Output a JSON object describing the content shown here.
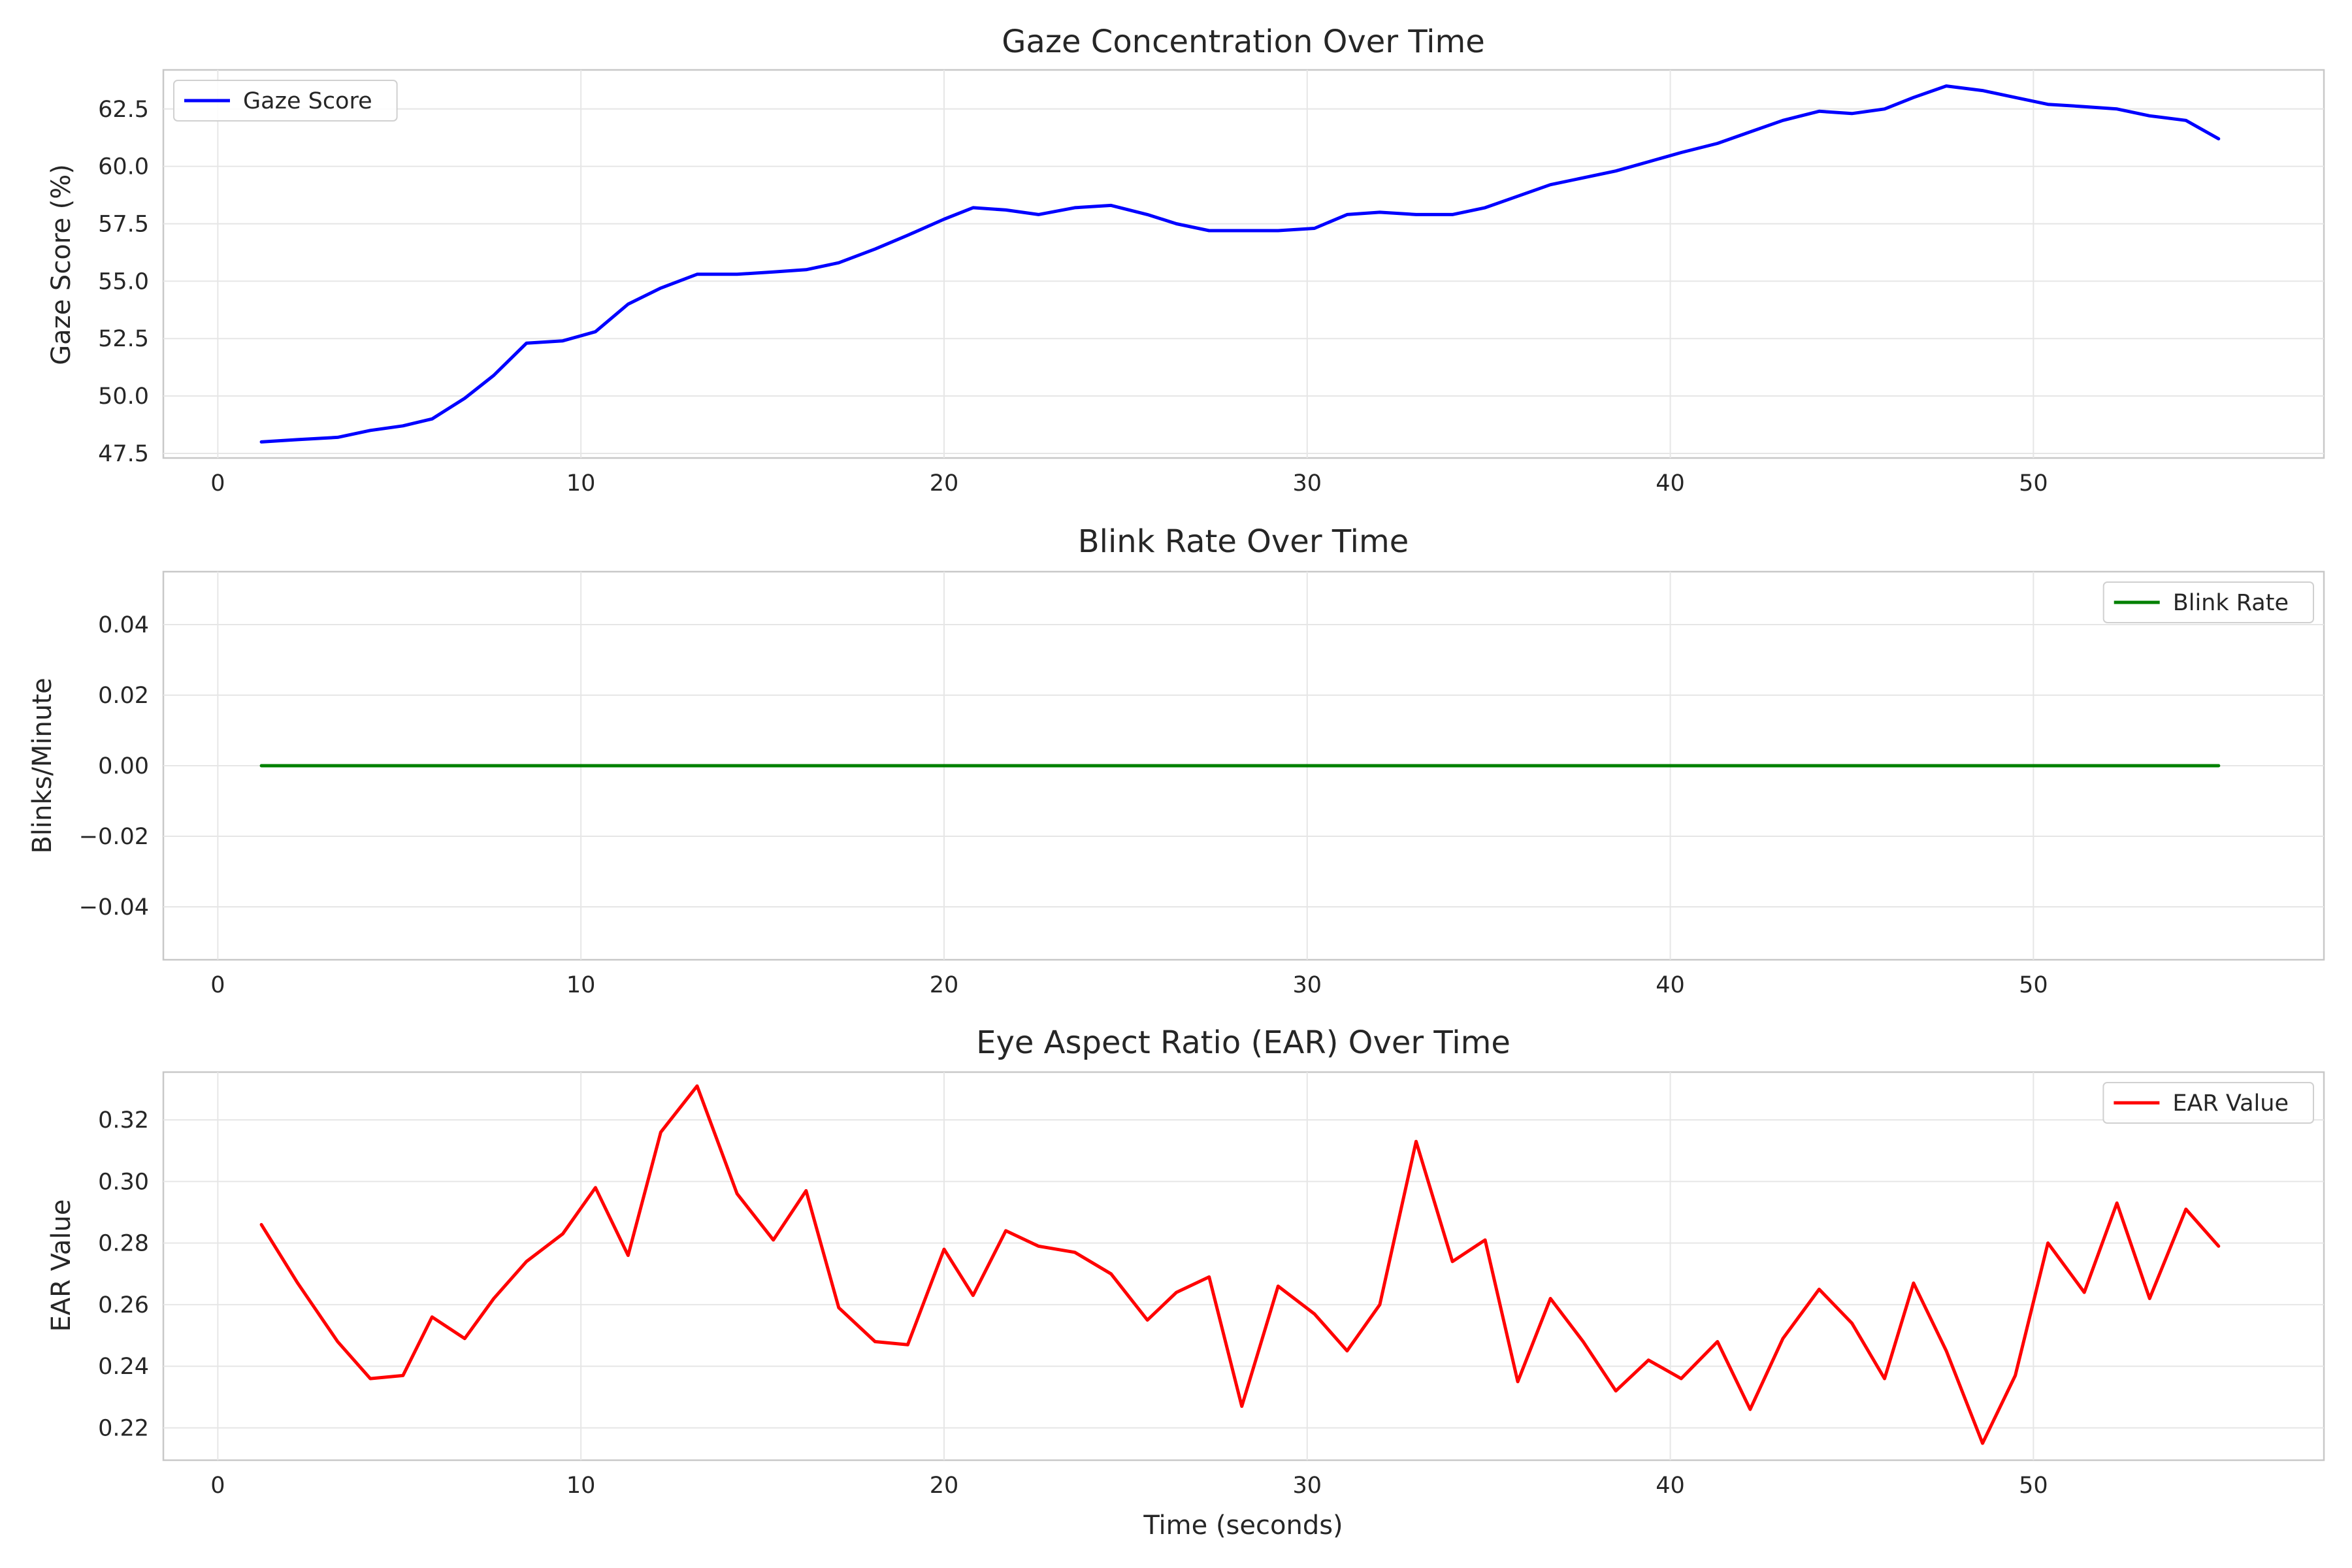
{
  "chart_data": [
    {
      "type": "line",
      "title": "Gaze Concentration Over Time",
      "xlabel": "",
      "ylabel": "Gaze Score (%)",
      "xlim": [
        -1.5,
        58
      ],
      "ylim": [
        47.3,
        64.2
      ],
      "xticks": [
        0,
        10,
        20,
        30,
        40,
        50
      ],
      "yticks": [
        47.5,
        50.0,
        52.5,
        55.0,
        57.5,
        60.0,
        62.5
      ],
      "ytick_decimals": 1,
      "grid": true,
      "legend": "top-left",
      "series": [
        {
          "name": "Gaze Score",
          "color": "#0000ff",
          "x": [
            1.2,
            2.2,
            3.3,
            4.2,
            5.1,
            5.9,
            6.8,
            7.6,
            8.5,
            9.5,
            10.4,
            11.3,
            12.2,
            13.2,
            14.3,
            15.3,
            16.2,
            17.1,
            18.1,
            19.0,
            20.0,
            20.8,
            21.7,
            22.6,
            23.6,
            24.6,
            25.6,
            26.4,
            27.3,
            28.2,
            29.2,
            30.2,
            31.1,
            32.0,
            33.0,
            34.0,
            34.9,
            35.8,
            36.7,
            37.6,
            38.5,
            39.4,
            40.3,
            41.3,
            42.2,
            43.1,
            44.1,
            45.0,
            45.9,
            46.7,
            47.6,
            48.6,
            49.5,
            50.4,
            51.4,
            52.3,
            53.2,
            54.2,
            55.1
          ],
          "y": [
            48.0,
            48.1,
            48.2,
            48.5,
            48.7,
            49.0,
            49.9,
            50.9,
            52.3,
            52.4,
            52.8,
            54.0,
            54.7,
            55.3,
            55.3,
            55.4,
            55.5,
            55.8,
            56.4,
            57.0,
            57.7,
            58.2,
            58.1,
            57.9,
            58.2,
            58.3,
            57.9,
            57.5,
            57.2,
            57.2,
            57.2,
            57.3,
            57.9,
            58.0,
            57.9,
            57.9,
            58.2,
            58.7,
            59.2,
            59.5,
            59.8,
            60.2,
            60.6,
            61.0,
            61.5,
            62.0,
            62.4,
            62.3,
            62.5,
            63.0,
            63.5,
            63.3,
            63.0,
            62.7,
            62.6,
            62.5,
            62.2,
            62.0,
            61.2
          ]
        }
      ]
    },
    {
      "type": "line",
      "title": "Blink Rate Over Time",
      "xlabel": "",
      "ylabel": "Blinks/Minute",
      "xlim": [
        -1.5,
        58
      ],
      "ylim": [
        -0.055,
        0.055
      ],
      "xticks": [
        0,
        10,
        20,
        30,
        40,
        50
      ],
      "yticks": [
        -0.04,
        -0.02,
        0.0,
        0.02,
        0.04
      ],
      "ytick_decimals": 2,
      "grid": true,
      "legend": "top-right",
      "series": [
        {
          "name": "Blink Rate",
          "color": "#008000",
          "x": [
            1.2,
            55.1
          ],
          "y": [
            0.0,
            0.0
          ]
        }
      ]
    },
    {
      "type": "line",
      "title": "Eye Aspect Ratio (EAR) Over Time",
      "xlabel": "Time (seconds)",
      "ylabel": "EAR Value",
      "xlim": [
        -1.5,
        58
      ],
      "ylim": [
        0.2095,
        0.3355
      ],
      "xticks": [
        0,
        10,
        20,
        30,
        40,
        50
      ],
      "yticks": [
        0.22,
        0.24,
        0.26,
        0.28,
        0.3,
        0.32
      ],
      "ytick_decimals": 2,
      "grid": true,
      "legend": "top-right",
      "series": [
        {
          "name": "EAR Value",
          "color": "#ff0000",
          "x": [
            1.2,
            2.2,
            3.3,
            4.2,
            5.1,
            5.9,
            6.8,
            7.6,
            8.5,
            9.5,
            10.4,
            11.3,
            12.2,
            13.2,
            14.3,
            15.3,
            16.2,
            17.1,
            18.1,
            19.0,
            20.0,
            20.8,
            21.7,
            22.6,
            23.6,
            24.6,
            25.6,
            26.4,
            27.3,
            28.2,
            29.2,
            30.2,
            31.1,
            32.0,
            33.0,
            34.0,
            34.9,
            35.8,
            36.7,
            37.6,
            38.5,
            39.4,
            40.3,
            41.3,
            42.2,
            43.1,
            44.1,
            45.0,
            45.9,
            46.7,
            47.6,
            48.6,
            49.5,
            50.4,
            51.4,
            52.3,
            53.2,
            54.2,
            55.1
          ],
          "y": [
            0.286,
            0.267,
            0.248,
            0.236,
            0.237,
            0.256,
            0.249,
            0.262,
            0.274,
            0.283,
            0.298,
            0.276,
            0.316,
            0.331,
            0.296,
            0.281,
            0.297,
            0.259,
            0.248,
            0.247,
            0.278,
            0.263,
            0.284,
            0.279,
            0.277,
            0.27,
            0.255,
            0.264,
            0.269,
            0.227,
            0.266,
            0.257,
            0.245,
            0.26,
            0.313,
            0.274,
            0.281,
            0.235,
            0.262,
            0.248,
            0.232,
            0.242,
            0.236,
            0.248,
            0.226,
            0.249,
            0.265,
            0.254,
            0.236,
            0.267,
            0.245,
            0.215,
            0.237,
            0.28,
            0.264,
            0.293,
            0.262,
            0.291,
            0.279
          ]
        }
      ]
    }
  ]
}
